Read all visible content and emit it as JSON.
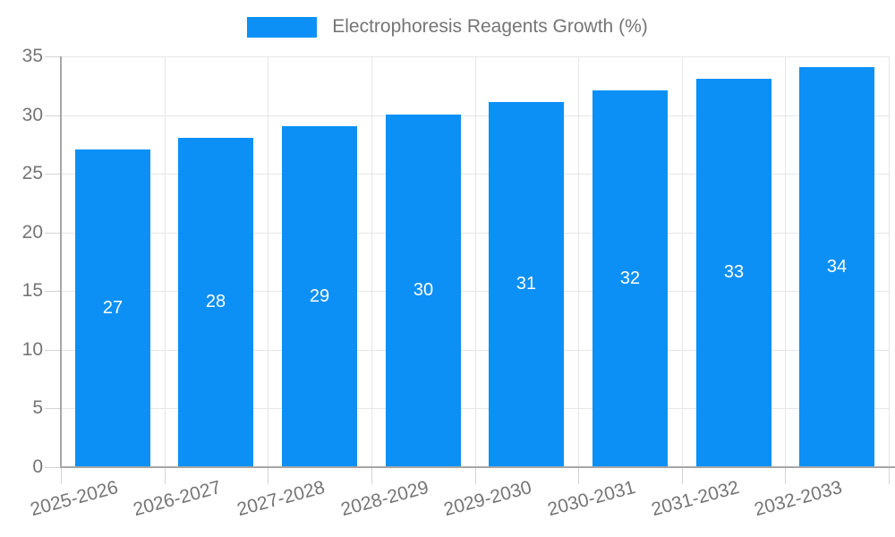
{
  "legend": {
    "label": "Electrophoresis Reagents Growth (%)"
  },
  "chart_data": {
    "type": "bar",
    "title": "Electrophoresis Reagents Growth (%)",
    "categories": [
      "2025-2026",
      "2026-2027",
      "2027-2028",
      "2028-2029",
      "2029-2030",
      "2030-2031",
      "2031-2032",
      "2032-2033"
    ],
    "values": [
      27,
      28,
      29,
      30,
      31,
      32,
      33,
      34
    ],
    "xlabel": "",
    "ylabel": "",
    "ylim": [
      0,
      35
    ],
    "yticks": [
      0,
      5,
      10,
      15,
      20,
      25,
      30,
      35
    ],
    "grid": true,
    "legend_position": "top",
    "value_label_position": "inside-center",
    "x_label_rotation_deg": -15,
    "colors": {
      "bar": "#0C90F5",
      "value_label": "#FFFFFF",
      "axis_text": "#757575",
      "gridline": "#E6E6E6",
      "tick": "#D4D4D4",
      "axis_line": "#A6A6A6",
      "background": "#FFFFFF"
    }
  }
}
